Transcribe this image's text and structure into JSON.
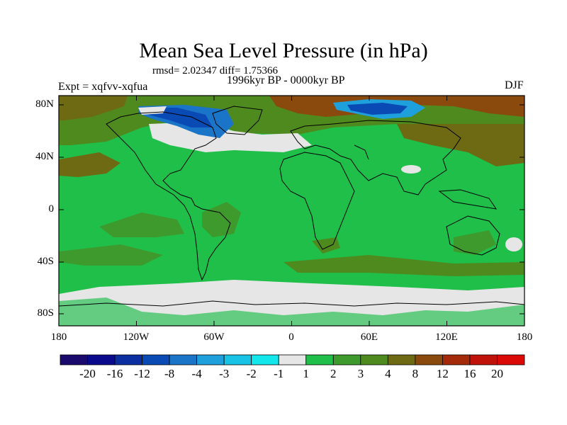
{
  "title": "Mean Sea Level Pressure (in hPa)",
  "stats": "rmsd= 2.02347 diff= 1.75366",
  "period": "1996kyr BP - 0000kyr BP",
  "experiment": "Expt = xqfvv-xqfua",
  "season": "DJF",
  "lat_ticks": [
    "80N",
    "40N",
    "0",
    "40S",
    "80S"
  ],
  "lon_ticks": [
    "180",
    "120W",
    "60W",
    "0",
    "60E",
    "120E",
    "180"
  ],
  "colorbar": {
    "labels": [
      "-20",
      "-16",
      "-12",
      "-8",
      "-4",
      "-3",
      "-2",
      "-1",
      "1",
      "2",
      "3",
      "4",
      "8",
      "12",
      "16",
      "20"
    ],
    "colors": [
      "#1b0a6e",
      "#0a0a8c",
      "#0b2ea0",
      "#0a4ab4",
      "#1a74c8",
      "#1ea0dc",
      "#19c3e6",
      "#12e8ec",
      "#e6e6e6",
      "#1fbf4a",
      "#3e9a2c",
      "#4f8a1e",
      "#6e6a14",
      "#8a4a0e",
      "#a42a0a",
      "#c01208",
      "#dc0a06"
    ]
  },
  "colors": {
    "land_outline": "#000000",
    "background_field": "#1fbf4a"
  }
}
